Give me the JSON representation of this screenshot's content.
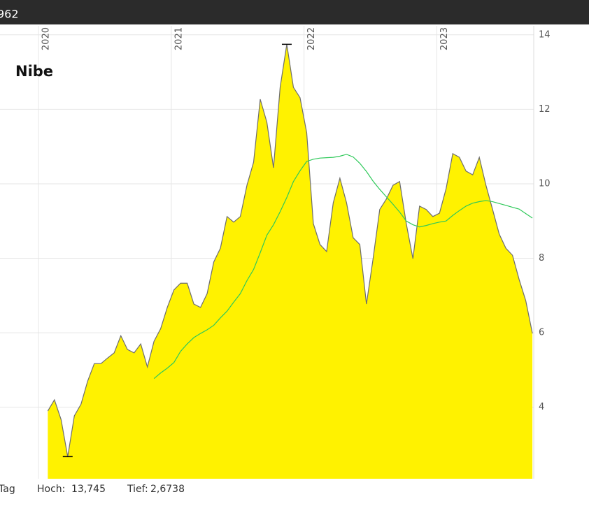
{
  "header": {
    "text": "962"
  },
  "chart_data": {
    "type": "area",
    "title": "Nibe",
    "x": [
      2020.07,
      2020.12,
      2020.17,
      2020.22,
      2020.27,
      2020.32,
      2020.37,
      2020.42,
      2020.47,
      2020.52,
      2020.57,
      2020.62,
      2020.67,
      2020.72,
      2020.77,
      2020.82,
      2020.87,
      2020.92,
      2020.97,
      2021.02,
      2021.07,
      2021.12,
      2021.17,
      2021.22,
      2021.27,
      2021.32,
      2021.37,
      2021.42,
      2021.47,
      2021.52,
      2021.57,
      2021.62,
      2021.67,
      2021.72,
      2021.77,
      2021.82,
      2021.87,
      2021.92,
      2021.97,
      2022.02,
      2022.07,
      2022.12,
      2022.17,
      2022.22,
      2022.27,
      2022.32,
      2022.37,
      2022.42,
      2022.47,
      2022.52,
      2022.57,
      2022.62,
      2022.67,
      2022.72,
      2022.77,
      2022.82,
      2022.87,
      2022.92,
      2022.97,
      2023.02,
      2023.07,
      2023.12,
      2023.17,
      2023.22,
      2023.27,
      2023.32,
      2023.37,
      2023.42,
      2023.47,
      2023.52,
      2023.57,
      2023.62,
      2023.67,
      2023.72
    ],
    "series": [
      {
        "color": "#6e6e6e",
        "fill": "#fff200",
        "values": [
          3.9,
          4.2,
          3.67,
          2.6738,
          3.77,
          4.08,
          4.7,
          5.17,
          5.17,
          5.32,
          5.46,
          5.92,
          5.55,
          5.46,
          5.7,
          5.08,
          5.77,
          6.11,
          6.68,
          7.15,
          7.33,
          7.33,
          6.77,
          6.68,
          7.05,
          7.9,
          8.27,
          9.12,
          8.97,
          9.12,
          9.96,
          10.58,
          12.27,
          11.65,
          10.43,
          12.59,
          13.745,
          12.59,
          12.31,
          11.37,
          8.93,
          8.37,
          8.18,
          9.49,
          10.15,
          9.49,
          8.55,
          8.37,
          6.77,
          7.99,
          9.31,
          9.59,
          9.96,
          10.06,
          8.93,
          7.99,
          9.4,
          9.31,
          9.12,
          9.21,
          9.87,
          10.81,
          10.71,
          10.34,
          10.24,
          10.71,
          9.96,
          9.31,
          8.65,
          8.27,
          8.08,
          7.43,
          6.86,
          5.98
        ]
      },
      {
        "color": "#2fc95a",
        "values": [
          null,
          null,
          null,
          null,
          null,
          null,
          null,
          null,
          null,
          null,
          null,
          null,
          null,
          null,
          null,
          null,
          4.77,
          4.92,
          5.05,
          5.2,
          5.5,
          5.7,
          5.87,
          5.98,
          6.08,
          6.2,
          6.4,
          6.58,
          6.82,
          7.05,
          7.4,
          7.7,
          8.15,
          8.62,
          8.9,
          9.25,
          9.63,
          10.06,
          10.35,
          10.6,
          10.66,
          10.69,
          10.7,
          10.71,
          10.74,
          10.79,
          10.72,
          10.55,
          10.33,
          10.07,
          9.85,
          9.65,
          9.45,
          9.24,
          9.0,
          8.9,
          8.84,
          8.88,
          8.93,
          8.97,
          9.0,
          9.15,
          9.28,
          9.4,
          9.48,
          9.52,
          9.55,
          9.52,
          9.47,
          9.42,
          9.37,
          9.32,
          9.2,
          9.08
        ]
      }
    ],
    "xlim": [
      2019.71,
      2023.73
    ],
    "xticks": [
      2020,
      2021,
      2022,
      2023
    ],
    "ylim": [
      2.08,
      14.24
    ],
    "yticks": [
      4,
      6,
      8,
      10,
      12,
      14
    ],
    "grid": true
  },
  "footer": {
    "period": "Tag",
    "high_label": "Hoch:",
    "high": {
      "value": 13.745,
      "label": "13,745"
    },
    "low_label": "Tief:",
    "low": {
      "value": 2.6738,
      "label": "2,6738"
    }
  }
}
